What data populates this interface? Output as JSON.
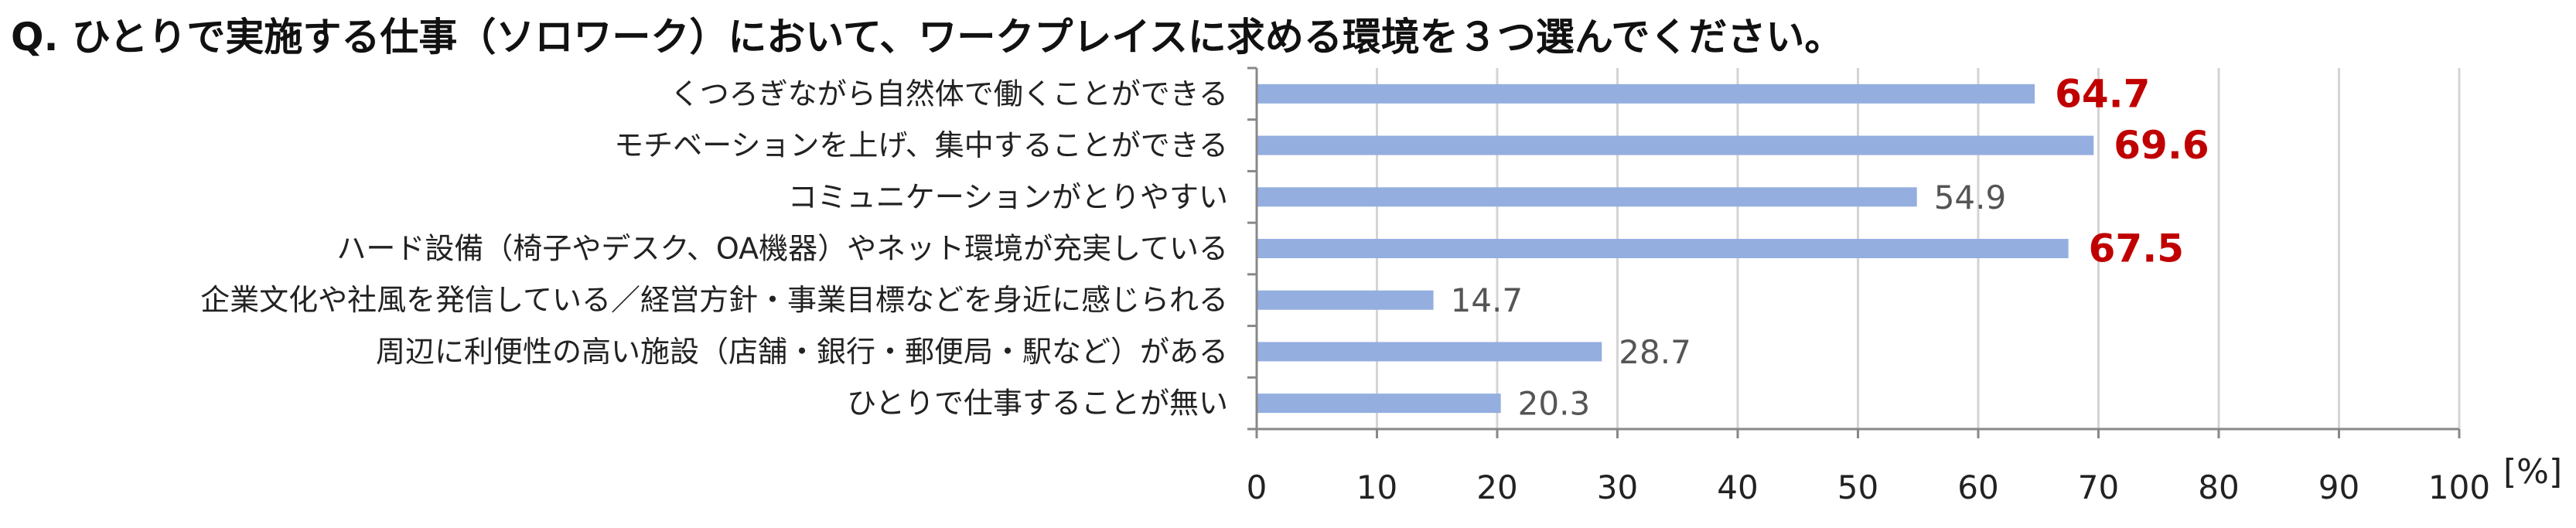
{
  "chart_data": {
    "type": "bar",
    "orientation": "horizontal",
    "title": "Q. ひとりで実施する仕事（ソロワーク）において、ワークプレイスに求める環境を３つ選んでください。",
    "unit": "[%]",
    "categories": [
      "くつろぎながら自然体で働くことができる",
      "モチベーションを上げ、集中することができる",
      "コミュニケーションがとりやすい",
      "ハード設備（椅子やデスク、OA機器）やネット環境が充実している",
      "企業文化や社風を発信している／経営方針・事業目標などを身近に感じられる",
      "周辺に利便性の高い施設（店舗・銀行・郵便局・駅など）がある",
      "ひとりで仕事することが無い"
    ],
    "values": [
      64.7,
      69.6,
      54.9,
      67.5,
      14.7,
      28.7,
      20.3
    ],
    "value_labels": [
      "64.7",
      "69.6",
      "54.9",
      "67.5",
      "14.7",
      "28.7",
      "20.3"
    ],
    "highlighted": [
      true,
      true,
      false,
      true,
      false,
      false,
      false
    ],
    "xlim": [
      0,
      100
    ],
    "xticks": [
      0,
      10,
      20,
      30,
      40,
      50,
      60,
      70,
      80,
      90,
      100
    ],
    "grid": true,
    "colors": {
      "bar": "#94aedf",
      "highlight_label": "#c00000",
      "label": "#555555",
      "grid": "#d4d4d4",
      "axis": "#888888"
    }
  }
}
